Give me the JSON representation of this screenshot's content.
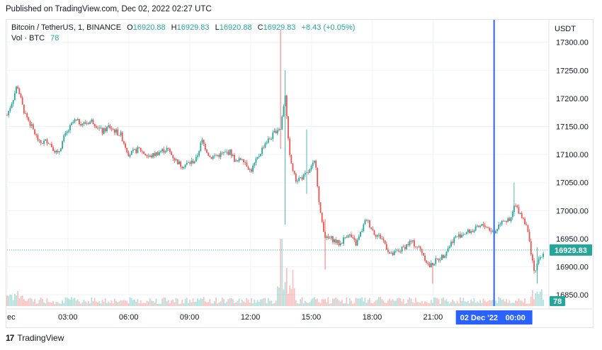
{
  "published": "Published on TradingView.com, Dec 02, 2022 02:27 UTC",
  "legend": {
    "symbol": "Bitcoin / TetherUS, 1, BINANCE",
    "open_label": "O",
    "open": "16920.88",
    "high_label": "H",
    "high": "16929.83",
    "low_label": "L",
    "low": "16920.88",
    "close_label": "C",
    "close": "16929.83",
    "change": "+8.43 (+0.05%)",
    "vol_label": "Vol · BTC",
    "vol_value": "78"
  },
  "brand": {
    "logo": "17",
    "name": "TradingView"
  },
  "colors": {
    "up": "#26a69a",
    "down": "#ef5350",
    "cursor": "#2962ff",
    "axis_text": "#131722"
  },
  "chart_data": {
    "type": "candlestick",
    "symbol": "Bitcoin / TetherUS",
    "interval": "1",
    "exchange": "BINANCE",
    "currency_label": "USDT",
    "y_ticks": [
      16850,
      16900,
      16950,
      17000,
      17050,
      17100,
      17150,
      17200,
      17250,
      17300
    ],
    "y_tick_labels": [
      "16850.00",
      "16900.00",
      "16950.00",
      "17000.00",
      "17050.00",
      "17100.00",
      "17150.00",
      "17200.00",
      "17250.00",
      "17300.00"
    ],
    "ylim": [
      16830,
      17340
    ],
    "x_ticks": [
      "ec",
      "03:00",
      "06:00",
      "09:00",
      "12:00",
      "15:00",
      "18:00",
      "21:00",
      "00:00"
    ],
    "x_tick_hours": [
      0,
      3,
      6,
      9,
      12,
      15,
      18,
      21,
      24
    ],
    "xlim_hours": [
      0.0,
      26.7
    ],
    "cursor_label": "02 Dec '22",
    "cursor_time_label": "00:00",
    "cursor_hour": 24.0,
    "last_price": 16929.83,
    "last_price_label": "16929.83",
    "last_volume_label": "78",
    "price_path": [
      [
        0.0,
        17170
      ],
      [
        0.3,
        17200
      ],
      [
        0.5,
        17225
      ],
      [
        0.8,
        17180
      ],
      [
        1.2,
        17150
      ],
      [
        1.6,
        17120
      ],
      [
        2.0,
        17125
      ],
      [
        2.5,
        17100
      ],
      [
        2.8,
        17130
      ],
      [
        3.3,
        17160
      ],
      [
        3.8,
        17155
      ],
      [
        4.2,
        17160
      ],
      [
        4.7,
        17140
      ],
      [
        5.0,
        17150
      ],
      [
        5.6,
        17135
      ],
      [
        6.0,
        17100
      ],
      [
        6.5,
        17110
      ],
      [
        7.0,
        17095
      ],
      [
        7.5,
        17105
      ],
      [
        7.9,
        17110
      ],
      [
        8.3,
        17090
      ],
      [
        8.6,
        17080
      ],
      [
        9.0,
        17085
      ],
      [
        9.3,
        17090
      ],
      [
        9.6,
        17125
      ],
      [
        10.0,
        17095
      ],
      [
        10.5,
        17100
      ],
      [
        11.0,
        17105
      ],
      [
        11.3,
        17085
      ],
      [
        11.6,
        17095
      ],
      [
        12.0,
        17070
      ],
      [
        12.3,
        17090
      ],
      [
        12.7,
        17120
      ],
      [
        13.0,
        17130
      ],
      [
        13.3,
        17145
      ],
      [
        13.5,
        17150
      ],
      [
        13.7,
        17210
      ],
      [
        13.9,
        17100
      ],
      [
        14.2,
        17055
      ],
      [
        14.6,
        17060
      ],
      [
        14.9,
        17070
      ],
      [
        15.2,
        17090
      ],
      [
        15.4,
        17000
      ],
      [
        15.7,
        16950
      ],
      [
        16.0,
        16950
      ],
      [
        16.4,
        16940
      ],
      [
        16.8,
        16960
      ],
      [
        17.2,
        16940
      ],
      [
        17.7,
        16985
      ],
      [
        18.1,
        16960
      ],
      [
        18.5,
        16950
      ],
      [
        18.9,
        16920
      ],
      [
        19.4,
        16930
      ],
      [
        19.9,
        16945
      ],
      [
        20.4,
        16930
      ],
      [
        20.8,
        16900
      ],
      [
        21.1,
        16910
      ],
      [
        21.5,
        16920
      ],
      [
        22.0,
        16950
      ],
      [
        22.5,
        16960
      ],
      [
        23.0,
        16965
      ],
      [
        23.5,
        16975
      ],
      [
        24.0,
        16960
      ],
      [
        24.4,
        16985
      ],
      [
        24.8,
        16980
      ],
      [
        25.0,
        17010
      ],
      [
        25.3,
        16995
      ],
      [
        25.6,
        16975
      ],
      [
        25.8,
        16930
      ],
      [
        26.0,
        16890
      ],
      [
        26.2,
        16910
      ],
      [
        26.5,
        16929.83
      ]
    ],
    "notable_wicks": [
      {
        "hour": 13.5,
        "high": 17323,
        "low": 17110
      },
      {
        "hour": 13.7,
        "high": 17250,
        "low": 16975
      },
      {
        "hour": 14.8,
        "high": 17145,
        "low": 17030
      },
      {
        "hour": 15.7,
        "high": 16985,
        "low": 16895
      },
      {
        "hour": 21.0,
        "high": 16905,
        "low": 16870
      },
      {
        "hour": 25.0,
        "high": 17050,
        "low": 16990
      },
      {
        "hour": 26.1,
        "high": 16935,
        "low": 16870
      }
    ],
    "volume_axis_note": "volume histogram along bottom; tall spikes near 12:00 and 13:30"
  }
}
